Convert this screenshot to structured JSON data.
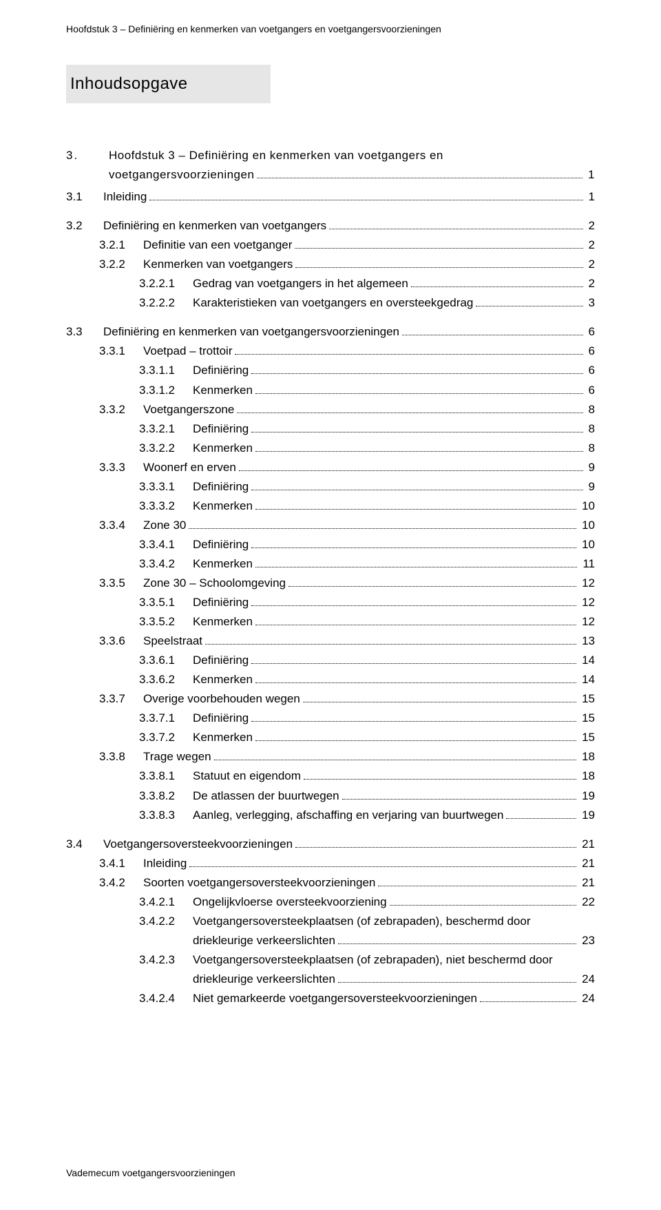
{
  "running_head": "Hoofdstuk 3 – Definiëring en kenmerken van voetgangers en voetgangersvoorzieningen",
  "section_title": "Inhoudsopgave",
  "footer": "Vademecum voetgangersvoorzieningen",
  "toc": [
    {
      "level": 0,
      "num": "3.",
      "label": "Hoofdstuk 3 – Definiëring en kenmerken van voetgangers en",
      "cont": "voetgangersvoorzieningen",
      "page": "1"
    },
    {
      "level": 1,
      "num": "3.1",
      "label": "Inleiding",
      "page": "1"
    },
    {
      "level": 1,
      "num": "3.2",
      "label": "Definiëring en kenmerken van voetgangers",
      "page": "2"
    },
    {
      "level": 2,
      "num": "3.2.1",
      "label": "Definitie van een voetganger",
      "page": "2"
    },
    {
      "level": 2,
      "num": "3.2.2",
      "label": "Kenmerken van voetgangers",
      "page": "2"
    },
    {
      "level": 3,
      "num": "3.2.2.1",
      "label": "Gedrag van voetgangers in het algemeen",
      "page": "2"
    },
    {
      "level": 3,
      "num": "3.2.2.2",
      "label": "Karakteristieken van voetgangers en oversteekgedrag",
      "page": "3"
    },
    {
      "level": 1,
      "num": "3.3",
      "label": "Definiëring en kenmerken van voetgangersvoorzieningen",
      "page": "6"
    },
    {
      "level": 2,
      "num": "3.3.1",
      "label": "Voetpad – trottoir",
      "page": "6"
    },
    {
      "level": 3,
      "num": "3.3.1.1",
      "label": "Definiëring",
      "page": "6"
    },
    {
      "level": 3,
      "num": "3.3.1.2",
      "label": "Kenmerken",
      "page": "6"
    },
    {
      "level": 2,
      "num": "3.3.2",
      "label": "Voetgangerszone",
      "page": "8"
    },
    {
      "level": 3,
      "num": "3.3.2.1",
      "label": "Definiëring",
      "page": "8"
    },
    {
      "level": 3,
      "num": "3.3.2.2",
      "label": "Kenmerken",
      "page": "8"
    },
    {
      "level": 2,
      "num": "3.3.3",
      "label": "Woonerf en erven",
      "page": "9"
    },
    {
      "level": 3,
      "num": "3.3.3.1",
      "label": "Definiëring",
      "page": "9"
    },
    {
      "level": 3,
      "num": "3.3.3.2",
      "label": "Kenmerken",
      "page": "10"
    },
    {
      "level": 2,
      "num": "3.3.4",
      "label": "Zone 30",
      "page": "10"
    },
    {
      "level": 3,
      "num": "3.3.4.1",
      "label": "Definiëring",
      "page": "10"
    },
    {
      "level": 3,
      "num": "3.3.4.2",
      "label": "Kenmerken",
      "page": "11"
    },
    {
      "level": 2,
      "num": "3.3.5",
      "label": "Zone 30 – Schoolomgeving",
      "page": "12"
    },
    {
      "level": 3,
      "num": "3.3.5.1",
      "label": "Definiëring",
      "page": "12"
    },
    {
      "level": 3,
      "num": "3.3.5.2",
      "label": "Kenmerken",
      "page": "12"
    },
    {
      "level": 2,
      "num": "3.3.6",
      "label": "Speelstraat",
      "page": "13"
    },
    {
      "level": 3,
      "num": "3.3.6.1",
      "label": "Definiëring",
      "page": "14"
    },
    {
      "level": 3,
      "num": "3.3.6.2",
      "label": "Kenmerken",
      "page": "14"
    },
    {
      "level": 2,
      "num": "3.3.7",
      "label": "Overige voorbehouden wegen",
      "page": "15"
    },
    {
      "level": 3,
      "num": "3.3.7.1",
      "label": "Definiëring",
      "page": "15"
    },
    {
      "level": 3,
      "num": "3.3.7.2",
      "label": "Kenmerken",
      "page": "15"
    },
    {
      "level": 2,
      "num": "3.3.8",
      "label": "Trage wegen",
      "page": "18"
    },
    {
      "level": 3,
      "num": "3.3.8.1",
      "label": "Statuut en eigendom",
      "page": "18"
    },
    {
      "level": 3,
      "num": "3.3.8.2",
      "label": "De atlassen der buurtwegen",
      "page": "19"
    },
    {
      "level": 3,
      "num": "3.3.8.3",
      "label": "Aanleg, verlegging, afschaffing en verjaring van buurtwegen",
      "page": "19"
    },
    {
      "level": 1,
      "num": "3.4",
      "label": "Voetgangersoversteekvoorzieningen",
      "page": "21"
    },
    {
      "level": 2,
      "num": "3.4.1",
      "label": "Inleiding",
      "page": "21"
    },
    {
      "level": 2,
      "num": "3.4.2",
      "label": "Soorten voetgangersoversteekvoorzieningen",
      "page": "21"
    },
    {
      "level": 3,
      "num": "3.4.2.1",
      "label": "Ongelijkvloerse oversteekvoorziening",
      "page": "22"
    },
    {
      "level": 3,
      "num": "3.4.2.2",
      "label": "Voetgangersoversteekplaatsen (of zebrapaden), beschermd door",
      "cont": "driekleurige verkeerslichten",
      "page": "23"
    },
    {
      "level": 3,
      "num": "3.4.2.3",
      "label": "Voetgangersoversteekplaatsen (of zebrapaden), niet beschermd door",
      "cont": "driekleurige verkeerslichten",
      "page": "24"
    },
    {
      "level": 3,
      "num": "3.4.2.4",
      "label": "Niet gemarkeerde voetgangersoversteekvoorzieningen",
      "page": "24"
    }
  ]
}
